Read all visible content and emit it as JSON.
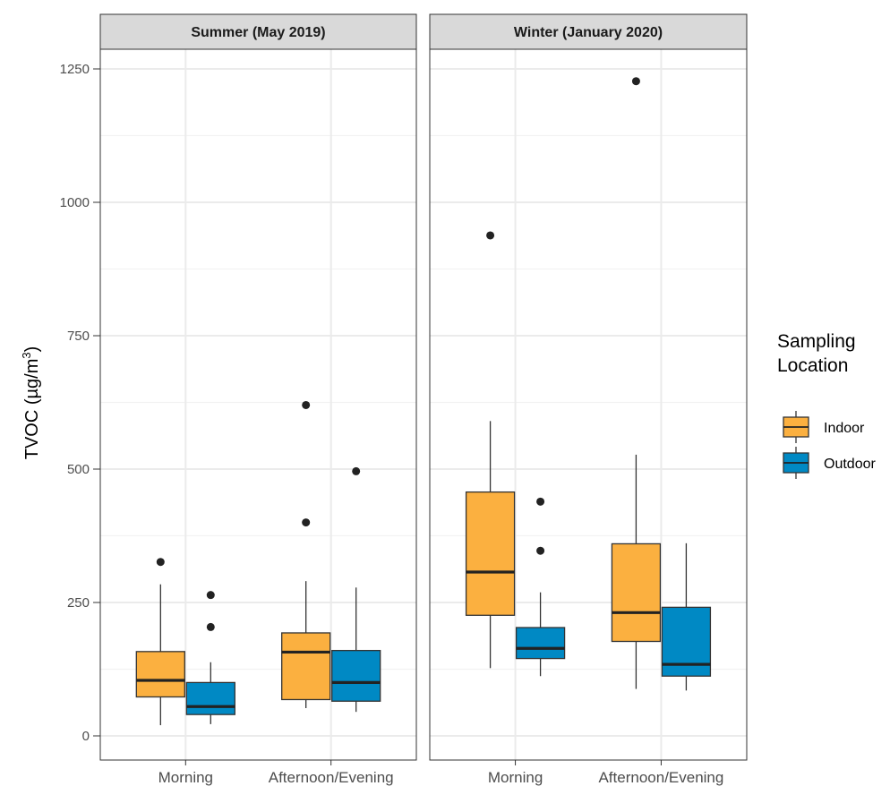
{
  "chart_data": {
    "type": "boxplot",
    "ylabel": "TVOC (µg/m³)",
    "ylabel_parts": {
      "main": "TVOC (µg/m",
      "superscript": "3",
      "close": ")"
    },
    "ylim": [
      0,
      1250
    ],
    "yticks": [
      0,
      250,
      500,
      750,
      1000,
      1250
    ],
    "categories": [
      "Morning",
      "Afternoon/Evening"
    ],
    "legend": {
      "title_lines": [
        "Sampling",
        "Location"
      ],
      "position": "right",
      "entries": [
        {
          "name": "Indoor",
          "color": "#FBB040"
        },
        {
          "name": "Outdoor",
          "color": "#0089C4"
        }
      ]
    },
    "grid": true,
    "panels": [
      {
        "title": "Summer (May 2019)",
        "groups": [
          {
            "category": "Morning",
            "series": "Indoor",
            "whisker_low": 20,
            "q1": 73,
            "median": 104,
            "q3": 158,
            "whisker_high": 284,
            "outliers": [
              326
            ]
          },
          {
            "category": "Morning",
            "series": "Outdoor",
            "whisker_low": 22,
            "q1": 40,
            "median": 55,
            "q3": 100,
            "whisker_high": 138,
            "outliers": [
              204,
              264
            ]
          },
          {
            "category": "Afternoon/Evening",
            "series": "Indoor",
            "whisker_low": 52,
            "q1": 68,
            "median": 157,
            "q3": 193,
            "whisker_high": 290,
            "outliers": [
              400,
              620
            ]
          },
          {
            "category": "Afternoon/Evening",
            "series": "Outdoor",
            "whisker_low": 45,
            "q1": 65,
            "median": 100,
            "q3": 160,
            "whisker_high": 278,
            "outliers": [
              496
            ]
          }
        ]
      },
      {
        "title": "Winter (January 2020)",
        "groups": [
          {
            "category": "Morning",
            "series": "Indoor",
            "whisker_low": 127,
            "q1": 226,
            "median": 307,
            "q3": 457,
            "whisker_high": 590,
            "outliers": [
              938
            ]
          },
          {
            "category": "Morning",
            "series": "Outdoor",
            "whisker_low": 112,
            "q1": 145,
            "median": 164,
            "q3": 203,
            "whisker_high": 269,
            "outliers": [
              347,
              439
            ]
          },
          {
            "category": "Afternoon/Evening",
            "series": "Indoor",
            "whisker_low": 88,
            "q1": 177,
            "median": 231,
            "q3": 360,
            "whisker_high": 527,
            "outliers": [
              1227
            ]
          },
          {
            "category": "Afternoon/Evening",
            "series": "Outdoor",
            "whisker_low": 85,
            "q1": 112,
            "median": 134,
            "q3": 241,
            "whisker_high": 361,
            "outliers": []
          }
        ]
      }
    ]
  }
}
